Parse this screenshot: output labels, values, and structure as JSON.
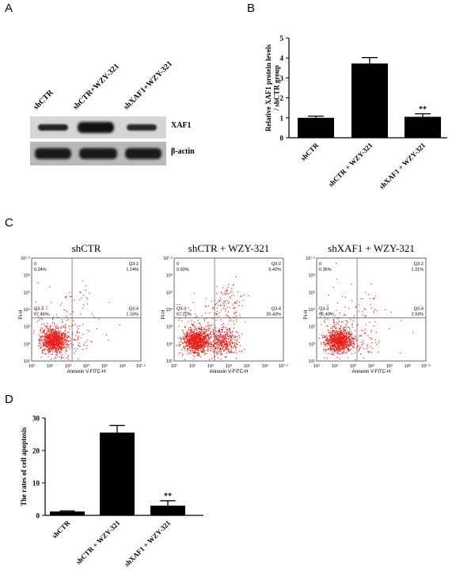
{
  "panels": {
    "A": "A",
    "B": "B",
    "C": "C",
    "D": "D"
  },
  "western": {
    "lanes": [
      "shCTR",
      "shCTR+WZY-321",
      "shXAF1+WZY-321"
    ],
    "bands": [
      "XAF1",
      "β-actin"
    ]
  },
  "flow": {
    "plots": [
      {
        "title": "shCTR",
        "q_ul": "0",
        "q_ul_val": "0.24%",
        "q_ur": "Q3-2",
        "q_ur_val": "1.14%",
        "q_ll": "Q3-3",
        "q_ll_val": "97.46%",
        "q_lr": "Q3-4",
        "q_lr_val": "1.16%"
      },
      {
        "title": "shCTR + WZY-321",
        "q_ul": "0",
        "q_ul_val": "0.93%",
        "q_ur": "Q3-2",
        "q_ur_val": "5.42%",
        "q_ll": "Q3-3",
        "q_ll_val": "67.22%",
        "q_lr": "Q3-4",
        "q_lr_val": "26.43%"
      },
      {
        "title": "shXAF1 + WZY-321",
        "q_ul": "0",
        "q_ul_val": "0.36%",
        "q_ur": "Q3-2",
        "q_ur_val": "1.31%",
        "q_ll": "Q3-3",
        "q_ll_val": "95.40%",
        "q_lr": "Q3-4",
        "q_lr_val": "2.93%"
      }
    ],
    "xlabel": "Annexin V-FITC-H",
    "ylabel": "PI-H",
    "ticks": [
      "10¹",
      "10²",
      "10³",
      "10⁴",
      "10⁵",
      "10⁶",
      "10⁷·²"
    ]
  },
  "chart_data": [
    {
      "type": "bar",
      "categories": [
        "shCTR",
        "shCTR + WZY-321",
        "shXAF1 + WZY-321"
      ],
      "values": [
        1.0,
        3.72,
        1.05
      ],
      "errors": [
        0.08,
        0.3,
        0.15
      ],
      "ylabel": "Relative XAF1 protein levels / shCTR group",
      "ylim": [
        0,
        5
      ],
      "yticks": [
        "0",
        "1",
        "2",
        "3",
        "4",
        "5"
      ],
      "annotations": [
        "",
        "",
        "**"
      ]
    },
    {
      "type": "bar",
      "categories": [
        "shCTR",
        "shCTR + WZY-321",
        "shXAF1 + WZY-321"
      ],
      "values": [
        1.2,
        25.5,
        3.0
      ],
      "errors": [
        0.2,
        2.2,
        1.5
      ],
      "ylabel": "The rates of cell apoptosis",
      "ylim": [
        0,
        30
      ],
      "yticks": [
        "0",
        "10",
        "20",
        "30"
      ],
      "annotations": [
        "",
        "",
        "**"
      ]
    }
  ]
}
